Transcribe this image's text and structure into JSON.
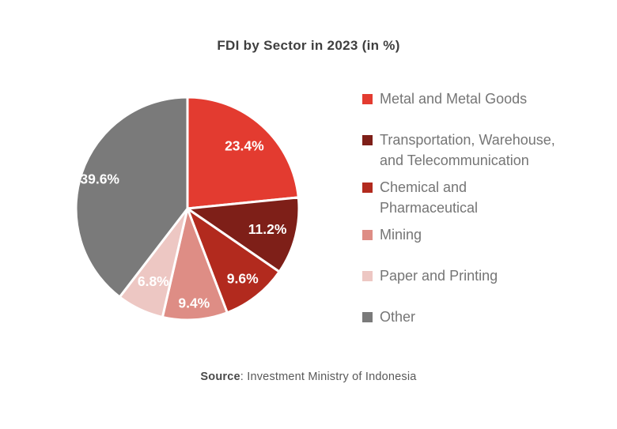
{
  "chart_data": {
    "type": "pie",
    "title": "FDI by Sector in 2023 (in %)",
    "direction": "clockwise",
    "start_angle_deg": 0,
    "legend_position": "right",
    "data_labels_shown": true,
    "slices": [
      {
        "label": "Metal and Metal Goods",
        "label_lines": [
          "Metal and Metal Goods"
        ],
        "value": 23.4,
        "data_label": "23.4%",
        "color": "#e33b30"
      },
      {
        "label": "Transportation, Warehouse, and Telecommunication",
        "label_lines": [
          "Transportation, Warehouse,",
          "and Telecommunication"
        ],
        "value": 11.2,
        "data_label": "11.2%",
        "color": "#7e1f18"
      },
      {
        "label": "Chemical and Pharmaceutical",
        "label_lines": [
          "Chemical and",
          "Pharmaceutical"
        ],
        "value": 9.6,
        "data_label": "9.6%",
        "color": "#b22a1e"
      },
      {
        "label": "Mining",
        "label_lines": [
          "Mining"
        ],
        "value": 9.4,
        "data_label": "9.4%",
        "color": "#de8d85"
      },
      {
        "label": "Paper and Printing",
        "label_lines": [
          "Paper and Printing"
        ],
        "value": 6.8,
        "data_label": "6.8%",
        "color": "#edc7c3"
      },
      {
        "label": "Other",
        "label_lines": [
          "Other"
        ],
        "value": 39.6,
        "data_label": "39.6%",
        "color": "#7a7a7a"
      }
    ]
  },
  "source": {
    "label": "Source",
    "rest": ": Investment Ministry of Indonesia"
  }
}
